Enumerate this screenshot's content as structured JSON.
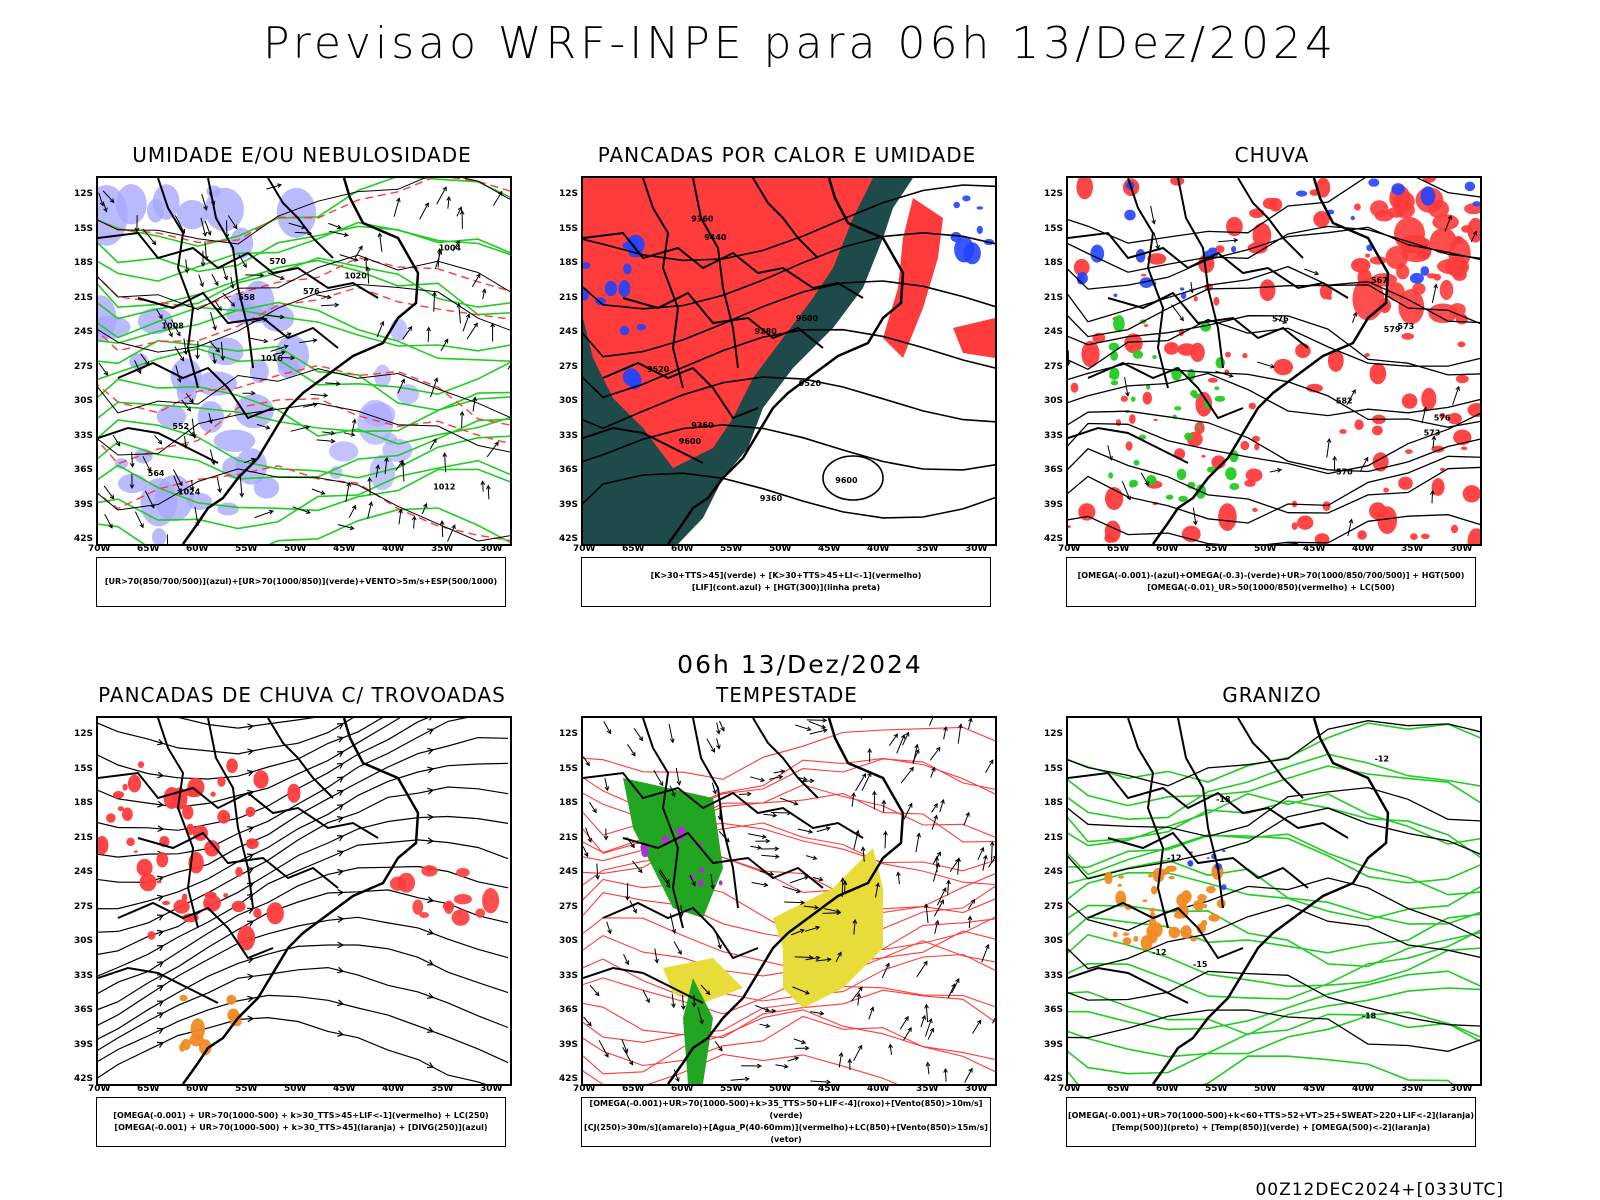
{
  "title": "Previsao WRF-INPE  para 06h 13/Dez/2024",
  "subtitle": "06h 13/Dez/2024",
  "run": "00Z12DEC2024+[033UTC]",
  "lat_labels": [
    "12S",
    "15S",
    "18S",
    "21S",
    "24S",
    "27S",
    "30S",
    "33S",
    "36S",
    "39S",
    "42S"
  ],
  "lon_labels": [
    "70W",
    "65W",
    "60W",
    "55W",
    "50W",
    "45W",
    "40W",
    "35W",
    "30W"
  ],
  "panels": [
    {
      "title": "UMIDADE E/OU NEBULOSIDADE",
      "legend": [
        "[UR>70(850/700/500)](azul)+[UR>70(1000/850)](verde)+VENTO>5m/s+ESP(500/1000)"
      ],
      "contours": [
        "1012",
        "1008",
        "1004",
        "1016",
        "1020",
        "1024",
        "570",
        "576",
        "552",
        "558",
        "564"
      ]
    },
    {
      "title": "PANCADAS POR CALOR E UMIDADE",
      "legend": [
        "[K>30+TTS>45](verde) + [K>30+TTS>45+LI<-1](vermelho)",
        "[LIF](cont.azul) + [HGT(300)](linha preta)"
      ],
      "contours": [
        "9600",
        "9600",
        "9520",
        "9520",
        "9440",
        "9360",
        "9360",
        "9280",
        "9360",
        "9600"
      ]
    },
    {
      "title": "CHUVA",
      "legend": [
        "[OMEGA(-0.001)-(azul)+OMEGA(-0.3)-(verde)+UR>70(1000/850/700/500)] + HGT(500)",
        "[OMEGA(-0.01)_UR>50(1000/850)(vermelho) + LC(500)"
      ],
      "contours": [
        "582",
        "576",
        "579",
        "573",
        "570",
        "567",
        "573",
        "576"
      ]
    },
    {
      "title": "PANCADAS DE CHUVA C/ TROVOADAS",
      "legend": [
        "[OMEGA(-0.001) + UR>70(1000-500) + k>30_TTS>45+LIF<-1](vermelho) + LC(250)",
        "[OMEGA(-0.001) + UR>70(1000-500) + k>30_TTS>45](laranja) + [DIVG(250)](azul)"
      ],
      "contours": []
    },
    {
      "title": "TEMPESTADE",
      "legend": [
        "[OMEGA(-0.001)+UR>70(1000-500)+k>35_TTS>50+LIF<-4](roxo)+[Vento(850)>10m/s](verde)",
        "[CJ(250)>30m/s](amarelo)+[Agua_P(40-60mm)](vermelho)+LC(850)+[Vento(850)>15m/s](vetor)"
      ],
      "contours": []
    },
    {
      "title": "GRANIZO",
      "legend": [
        "[OMEGA(-0.001)+UR>70(1000-500)+k<60+TTS>52+VT>25+SWEAT>220+LIF<-2](laranja)",
        "[Temp(500)](preto) + [Temp(850)](verde) + [OMEGA(500)<-2](laranja)"
      ],
      "contours": [
        "-12",
        "-15",
        "-18",
        "-18",
        "-12",
        "-12"
      ]
    }
  ],
  "colors": {
    "red": "#ff3b3b",
    "green": "#22cc22",
    "blue": "#2244ff",
    "lavender": "#a9a9ff",
    "darkteal": "#1e4a4a",
    "yellow": "#e8dc3a",
    "orange": "#f08a24",
    "purple": "#aa33cc",
    "black": "#000000"
  }
}
